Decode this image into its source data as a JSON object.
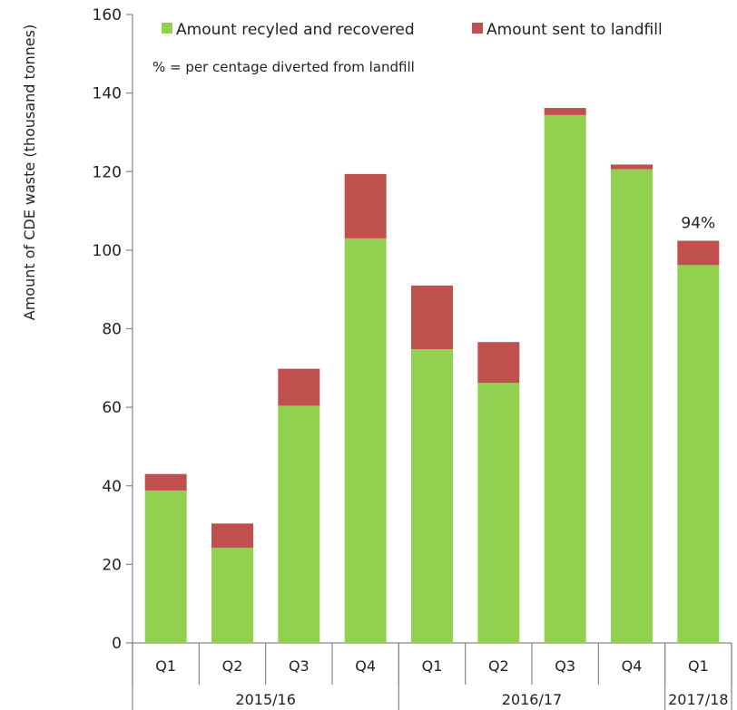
{
  "chart_data": {
    "type": "bar",
    "stacked": true,
    "ylabel": "Amount of CDE waste (thousand tonnes)",
    "xlabel": "",
    "ylim": [
      0,
      160
    ],
    "yticks": [
      0,
      20,
      40,
      60,
      80,
      100,
      120,
      140,
      160
    ],
    "categories": [
      "Q1",
      "Q2",
      "Q3",
      "Q4",
      "Q1",
      "Q2",
      "Q3",
      "Q4",
      "Q1"
    ],
    "groups": [
      {
        "label": "2015/16",
        "count": 4
      },
      {
        "label": "2016/17",
        "count": 4
      },
      {
        "label": "2017/18",
        "count": 1
      }
    ],
    "series": [
      {
        "name": "Amount recyled and recovered",
        "color": "#92d050",
        "values": [
          38.8,
          24.2,
          60.4,
          103.0,
          74.8,
          66.2,
          134.4,
          120.6,
          96.2
        ]
      },
      {
        "name": "Amount sent to landfill",
        "color": "#c0504d",
        "values": [
          4.2,
          6.2,
          9.4,
          16.4,
          16.2,
          10.4,
          1.8,
          1.2,
          6.2
        ]
      }
    ],
    "legend": "top",
    "grid": false,
    "annotation_note": "% = per centage diverted from landfill",
    "data_labels": [
      {
        "category_index": 8,
        "text": "94%"
      }
    ]
  }
}
